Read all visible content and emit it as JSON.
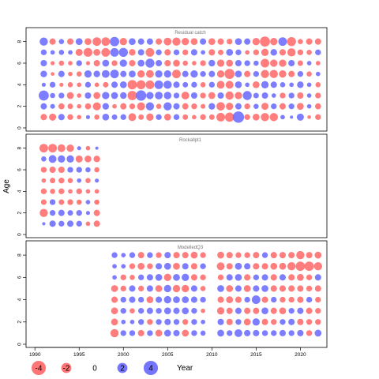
{
  "colors": {
    "negative": "#ff6666",
    "positive": "#6666ff",
    "frame": "#000000"
  },
  "chart_data": {
    "type": "scatter",
    "description_type": "bubble-residuals",
    "ylabel": "Age",
    "legend_title": "Year",
    "legend": [
      {
        "value": -4,
        "label": "-4"
      },
      {
        "value": -2,
        "label": "-2"
      },
      {
        "value": 0,
        "label": "0"
      },
      {
        "value": 2,
        "label": "2"
      },
      {
        "value": 4,
        "label": "4"
      }
    ],
    "xlim": [
      1989,
      2023
    ],
    "x_ticks": [
      1990,
      1995,
      2000,
      2005,
      2010,
      2015,
      2020
    ],
    "panels": [
      {
        "title": "Residual catch",
        "ylim": [
          0,
          9
        ],
        "y_ticks": [
          0,
          2,
          4,
          6,
          8
        ],
        "years": [
          1991,
          1992,
          1993,
          1994,
          1995,
          1996,
          1997,
          1998,
          1999,
          2000,
          2001,
          2002,
          2003,
          2004,
          2005,
          2006,
          2007,
          2008,
          2009,
          2010,
          2011,
          2012,
          2013,
          2014,
          2015,
          2016,
          2017,
          2018,
          2019,
          2020,
          2021,
          2022
        ],
        "ages": [
          1,
          2,
          3,
          4,
          5,
          6,
          7,
          8
        ],
        "residuals": [
          [
            -1.2,
            -1.5,
            1.2,
            -1.0,
            -0.6,
            0.5,
            -0.8,
            1.4,
            0.9,
            1.0,
            -1.8,
            -0.9,
            -1.6,
            1.0,
            -1.4,
            1.0,
            -0.9,
            -0.6,
            -1.0,
            -0.9,
            -2.2,
            -2.5,
            3.8,
            -1.0,
            -1.4,
            -2.0,
            -2.0,
            0.6,
            0.3,
            1.5,
            -0.4,
            -1.0
          ],
          [
            1.2,
            0.7,
            -1.1,
            -0.9,
            -0.6,
            -1.1,
            -1.9,
            1.3,
            -0.6,
            -1.2,
            -1.0,
            -1.9,
            2.0,
            -0.8,
            2.0,
            1.2,
            -1.2,
            -1.0,
            -0.7,
            1.3,
            -2.1,
            -1.6,
            1.2,
            -1.0,
            0.8,
            -1.5,
            1.0,
            -1.2,
            1.0,
            -1.4,
            0.6,
            -1.1
          ],
          [
            3.0,
            0.8,
            1.0,
            -1.4,
            -0.6,
            1.2,
            -1.4,
            1.6,
            1.4,
            1.3,
            -2.6,
            3.2,
            1.6,
            1.8,
            1.7,
            1.0,
            -1.8,
            1.2,
            -1.0,
            -1.4,
            1.2,
            -2.0,
            -1.6,
            2.4,
            0.9,
            1.2,
            0.6,
            -1.0,
            1.0,
            -1.2,
            0.6,
            -1.0
          ],
          [
            0.5,
            1.0,
            -0.5,
            -0.8,
            -0.6,
            1.0,
            -0.6,
            -0.9,
            1.2,
            1.4,
            -2.6,
            -2.4,
            -2.2,
            2.2,
            2.0,
            1.2,
            0.9,
            1.0,
            -0.8,
            1.0,
            -1.8,
            -1.8,
            1.4,
            0.6,
            -1.4,
            1.6,
            1.2,
            0.8,
            0.6,
            1.3,
            0.6,
            -0.8
          ],
          [
            1.3,
            -0.4,
            1.2,
            -0.6,
            -0.8,
            1.6,
            1.3,
            1.8,
            2.2,
            1.2,
            1.4,
            -1.6,
            -1.8,
            1.6,
            1.6,
            -2.2,
            1.2,
            1.6,
            1.0,
            1.2,
            -1.6,
            -3.0,
            1.4,
            -1.2,
            1.0,
            -2.0,
            -2.0,
            -1.6,
            -1.2,
            1.0,
            -0.8,
            0.6
          ],
          [
            1.2,
            -0.5,
            -0.8,
            -0.6,
            1.0,
            -0.5,
            -1.2,
            1.4,
            -1.0,
            1.6,
            -1.2,
            1.4,
            2.4,
            1.2,
            -1.2,
            -1.4,
            -0.8,
            -0.6,
            -1.0,
            1.3,
            -1.6,
            -1.4,
            1.2,
            1.0,
            0.8,
            -2.2,
            -1.6,
            -1.6,
            1.2,
            -0.9,
            0.6,
            -0.6
          ],
          [
            1.0,
            0.6,
            0.8,
            0.6,
            -1.5,
            -2.3,
            -1.4,
            -2.2,
            2.2,
            2.4,
            -1.3,
            1.2,
            -2.2,
            1.0,
            -1.2,
            1.0,
            -1.0,
            1.2,
            0.6,
            -1.2,
            -0.9,
            1.4,
            1.0,
            -0.6,
            -1.0,
            -1.6,
            1.3,
            -1.2,
            -2.0,
            -1.0,
            -0.8,
            1.0
          ],
          [
            2.0,
            -1.2,
            0.8,
            -1.2,
            1.4,
            -1.4,
            -2.2,
            -2.2,
            2.6,
            -1.6,
            1.4,
            1.2,
            1.2,
            -1.2,
            -1.8,
            -2.0,
            -1.6,
            -1.4,
            1.2,
            -1.4,
            -1.2,
            -1.0,
            1.4,
            1.2,
            -1.6,
            -3.0,
            -1.6,
            2.2,
            -2.4,
            -0.8,
            -1.2,
            -1.2
          ]
        ]
      },
      {
        "title": "Rockallpt1",
        "ylim": [
          0,
          9
        ],
        "y_ticks": [
          0,
          2,
          4,
          6,
          8
        ],
        "years": [
          1991,
          1992,
          1993,
          1994,
          1995,
          1996,
          1997
        ],
        "ages": [
          1,
          2,
          3,
          4,
          5,
          6,
          7,
          8
        ],
        "residuals": [
          [
            0.3,
            1.2,
            1.0,
            1.2,
            1.0,
            -0.6,
            -1.2
          ],
          [
            -2.0,
            1.0,
            1.2,
            0.9,
            1.0,
            0.5,
            -1.2
          ],
          [
            -0.9,
            1.0,
            -0.9,
            -1.0,
            -0.8,
            0.6,
            -0.8
          ],
          [
            -1.0,
            -0.8,
            -1.0,
            -0.6,
            -1.0,
            -0.6,
            -0.6
          ],
          [
            -0.6,
            -0.9,
            -1.0,
            -0.8,
            0.6,
            -0.8,
            0.5
          ],
          [
            -1.0,
            -1.2,
            -1.2,
            1.0,
            1.0,
            0.8,
            -0.8
          ],
          [
            0.8,
            1.8,
            1.6,
            1.6,
            -1.5,
            -1.4,
            -1.3
          ],
          [
            -2.2,
            -2.2,
            -1.8,
            -1.6,
            0.5,
            -0.6,
            0.3
          ]
        ]
      },
      {
        "title": "ModelledQ3",
        "ylim": [
          0,
          9
        ],
        "y_ticks": [
          0,
          2,
          4,
          6,
          8
        ],
        "years": [
          1999,
          2000,
          2001,
          2002,
          2003,
          2004,
          2005,
          2006,
          2007,
          2008,
          2009,
          2011,
          2012,
          2013,
          2014,
          2015,
          2016,
          2017,
          2018,
          2019,
          2020,
          2021,
          2022
        ],
        "ages": [
          1,
          2,
          3,
          4,
          5,
          6,
          7,
          8
        ],
        "residuals": [
          [
            -2.0,
            1.0,
            1.0,
            -1.2,
            1.0,
            -1.4,
            1.4,
            1.2,
            -1.4,
            1.0,
            0.8,
            1.4,
            1.0,
            1.8,
            1.2,
            1.2,
            1.0,
            1.0,
            1.2,
            1.0,
            1.2,
            -1.0,
            1.4
          ],
          [
            -1.4,
            0.6,
            0.6,
            1.0,
            -1.0,
            1.0,
            1.2,
            1.0,
            -1.0,
            1.0,
            0.6,
            1.2,
            -1.2,
            1.0,
            -1.4,
            1.6,
            -1.2,
            -1.0,
            1.0,
            1.2,
            -1.2,
            -1.0,
            -1.0
          ],
          [
            -1.4,
            1.0,
            -0.8,
            1.0,
            1.2,
            1.0,
            1.4,
            1.2,
            1.4,
            1.0,
            -0.6,
            -1.6,
            -1.2,
            1.2,
            -1.2,
            -1.2,
            1.4,
            -1.2,
            -1.4,
            1.0,
            1.2,
            -1.2,
            -1.0
          ],
          [
            -1.2,
            1.0,
            1.2,
            1.0,
            -1.4,
            1.2,
            1.6,
            1.4,
            1.4,
            1.2,
            1.0,
            -1.2,
            -1.4,
            -1.2,
            1.0,
            2.2,
            -1.2,
            1.0,
            -1.0,
            -1.0,
            -1.2,
            1.0,
            -1.0
          ],
          [
            -1.4,
            -1.0,
            1.2,
            -1.0,
            1.2,
            -1.4,
            1.6,
            -1.6,
            -1.6,
            1.2,
            -0.8,
            1.4,
            -1.4,
            1.2,
            -1.4,
            1.2,
            1.4,
            -1.2,
            -1.2,
            -1.2,
            -1.2,
            -1.0,
            -1.2
          ],
          [
            0.6,
            -1.0,
            -0.8,
            1.0,
            1.2,
            1.4,
            -1.6,
            1.4,
            1.6,
            -1.2,
            -1.0,
            -1.0,
            1.2,
            1.4,
            -1.2,
            1.0,
            1.2,
            -1.2,
            1.2,
            -1.2,
            -1.4,
            -1.0,
            1.2
          ],
          [
            0.6,
            0.6,
            -1.0,
            -1.4,
            -1.0,
            1.2,
            1.4,
            -1.4,
            1.2,
            -1.2,
            1.0,
            -1.8,
            -1.2,
            1.4,
            1.2,
            -1.2,
            -1.2,
            -1.4,
            -1.4,
            -2.0,
            -2.6,
            -2.6,
            -2.0
          ],
          [
            1.0,
            0.6,
            1.0,
            -1.2,
            1.0,
            -1.0,
            1.2,
            -1.2,
            -1.2,
            -1.4,
            -1.0,
            -1.4,
            -1.2,
            -1.0,
            -1.0,
            -1.2,
            1.0,
            -1.2,
            -1.2,
            -1.2,
            -2.0,
            -1.2,
            -1.4
          ]
        ]
      }
    ]
  }
}
